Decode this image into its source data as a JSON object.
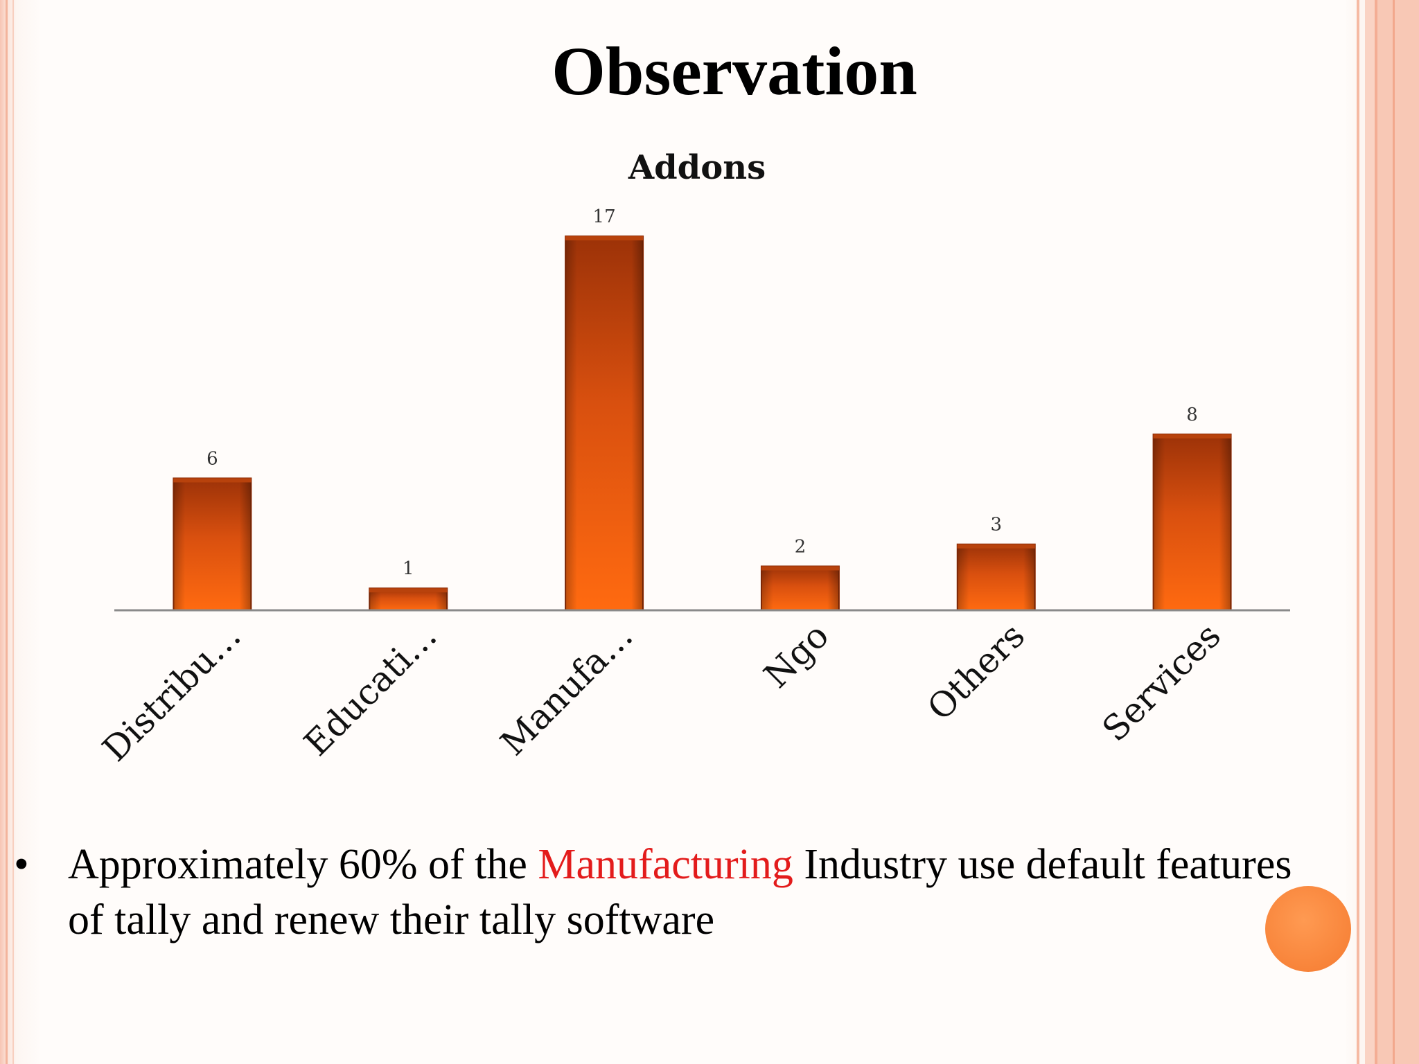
{
  "slide": {
    "title": "Observation",
    "bullet": {
      "before": "Approximately 60% of the ",
      "highlight": "Manufacturing",
      "after": " Industry use default features of tally and renew their tally software",
      "highlight_color": "#e31b1b"
    }
  },
  "chart_data": {
    "type": "bar",
    "title": "Addons",
    "categories": [
      "Distribu…",
      "Educati…",
      "Manufa…",
      "Ngo",
      "Others",
      "Services"
    ],
    "values": [
      6,
      1,
      17,
      2,
      3,
      8
    ],
    "data_labels": [
      "6",
      "1",
      "17",
      "2",
      "3",
      "8"
    ],
    "ylim": [
      0,
      17
    ],
    "grid": false,
    "legend": "none",
    "bar_color": "#f26b15",
    "bar_color_dark": "#a8360a"
  }
}
